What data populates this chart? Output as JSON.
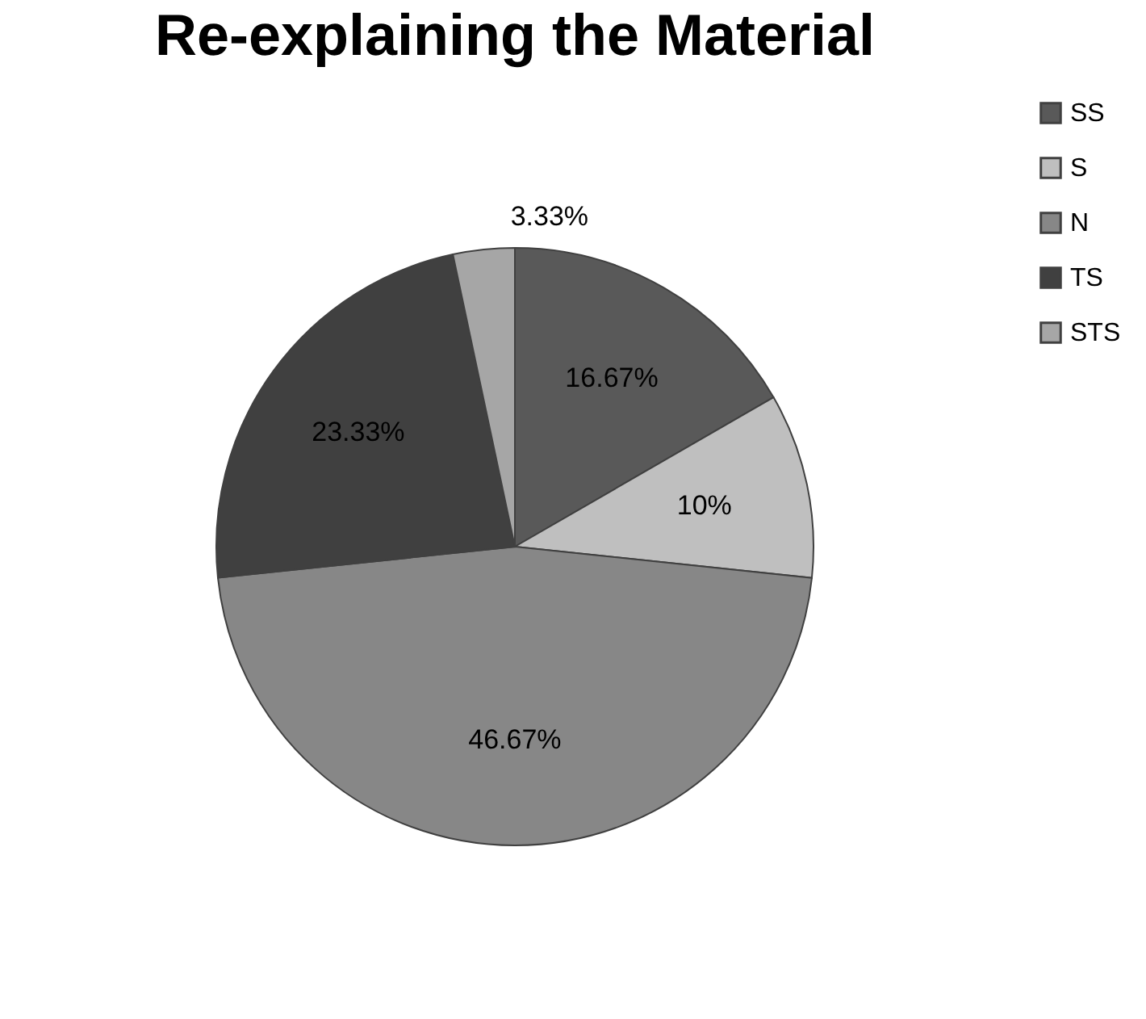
{
  "chart_data": {
    "type": "pie",
    "title": "Re-explaining the Material",
    "categories": [
      "SS",
      "S",
      "N",
      "TS",
      "STS"
    ],
    "values": [
      16.67,
      10,
      46.67,
      23.33,
      3.33
    ],
    "value_labels": [
      "16.67%",
      "10%",
      "46.67%",
      "23.33%",
      "3.33%"
    ],
    "colors": [
      "#595959",
      "#bfbfbf",
      "#878787",
      "#404040",
      "#a6a6a6"
    ],
    "legend": "right"
  }
}
